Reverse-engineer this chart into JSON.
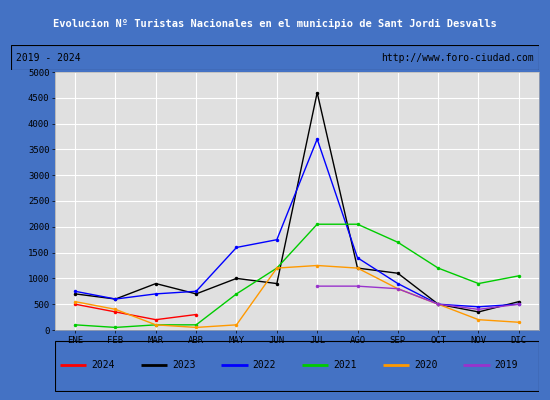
{
  "title": "Evolucion Nº Turistas Nacionales en el municipio de Sant Jordi Desvalls",
  "subtitle_left": "2019 - 2024",
  "subtitle_right": "http://www.foro-ciudad.com",
  "months": [
    "ENE",
    "FEB",
    "MAR",
    "ABR",
    "MAY",
    "JUN",
    "JUL",
    "AGO",
    "SEP",
    "OCT",
    "NOV",
    "DIC"
  ],
  "ylim": [
    0,
    5000
  ],
  "yticks": [
    0,
    500,
    1000,
    1500,
    2000,
    2500,
    3000,
    3500,
    4000,
    4500,
    5000
  ],
  "series": {
    "2024": {
      "color": "#ff0000",
      "values": [
        500,
        350,
        200,
        300,
        null,
        null,
        null,
        null,
        null,
        null,
        null,
        null
      ]
    },
    "2023": {
      "color": "#000000",
      "values": [
        700,
        600,
        900,
        700,
        1000,
        900,
        4600,
        1200,
        1100,
        500,
        350,
        550
      ]
    },
    "2022": {
      "color": "#0000ff",
      "values": [
        750,
        600,
        700,
        750,
        1600,
        1750,
        3700,
        1400,
        900,
        500,
        450,
        500
      ]
    },
    "2021": {
      "color": "#00cc00",
      "values": [
        100,
        50,
        100,
        100,
        700,
        1200,
        2050,
        2050,
        1700,
        1200,
        900,
        1050
      ]
    },
    "2020": {
      "color": "#ff9900",
      "values": [
        550,
        400,
        100,
        50,
        100,
        1200,
        1250,
        1200,
        800,
        500,
        200,
        150
      ]
    },
    "2019": {
      "color": "#9933cc",
      "values": [
        null,
        null,
        null,
        null,
        null,
        null,
        850,
        850,
        800,
        500,
        400,
        500
      ]
    }
  },
  "title_bg": "#4472c4",
  "title_color": "#ffffff",
  "plot_bg": "#e0e0e0",
  "grid_color": "#ffffff",
  "border_color": "#4472c4",
  "legend_items": [
    [
      "2024",
      "#ff0000"
    ],
    [
      "2023",
      "#000000"
    ],
    [
      "2022",
      "#0000ff"
    ],
    [
      "2021",
      "#00cc00"
    ],
    [
      "2020",
      "#ff9900"
    ],
    [
      "2019",
      "#9933cc"
    ]
  ]
}
